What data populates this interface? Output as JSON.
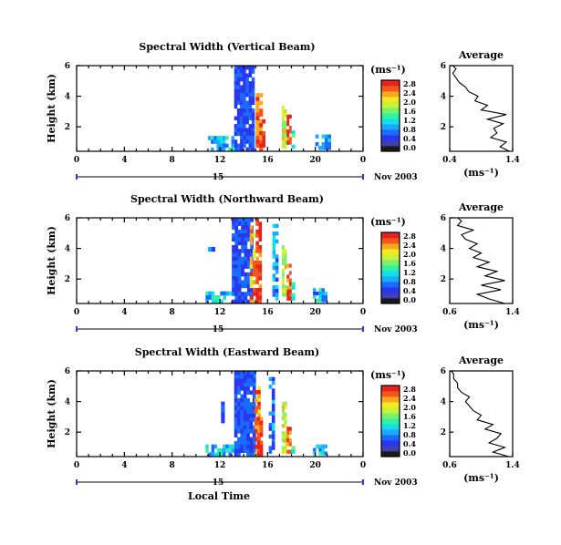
{
  "colors": {
    "colormap": [
      "#1a1a1a",
      "#3f3fb6",
      "#2a36f0",
      "#1a6bff",
      "#1aa9ff",
      "#15dfe6",
      "#32f2a6",
      "#7cf26a",
      "#c6f23a",
      "#f2e91f",
      "#f7a81c",
      "#f5561c",
      "#e8231c"
    ],
    "axis": "#000000",
    "bottom_axis": "#2a36f0"
  },
  "xlabel": "Local Time",
  "chart_data": [
    {
      "type": "heatmap",
      "title": "Spectral Width (Vertical Beam)",
      "ylabel": "Height (km)",
      "xlim": [
        0,
        24
      ],
      "x_ticks": [
        "0",
        "4",
        "8",
        "12",
        "16",
        "20",
        "0"
      ],
      "ylim": [
        0.4,
        6
      ],
      "y_ticks": [
        "2",
        "4",
        "6"
      ],
      "date_axis": {
        "day_label": "15",
        "month_label": "Nov 2003"
      },
      "colorbar": {
        "unit": "(ms⁻¹)",
        "ticks": [
          "0.0",
          "0.4",
          "0.8",
          "1.2",
          "1.6",
          "2.0",
          "2.4",
          "2.8"
        ]
      },
      "blocks": [
        {
          "x0": 13.2,
          "x1": 14.9,
          "y0": 0.4,
          "y1": 6.0,
          "level": 0.4
        },
        {
          "x0": 11.0,
          "x1": 13.2,
          "y0": 0.4,
          "y1": 1.4,
          "level": 0.9
        },
        {
          "x0": 15.0,
          "x1": 15.6,
          "y0": 0.4,
          "y1": 4.2,
          "level": 2.6
        },
        {
          "x0": 15.3,
          "x1": 15.8,
          "y0": 0.4,
          "y1": 2.5,
          "level": 2.9
        },
        {
          "x0": 17.2,
          "x1": 17.6,
          "y0": 0.6,
          "y1": 3.4,
          "level": 1.9
        },
        {
          "x0": 17.6,
          "x1": 18.0,
          "y0": 0.6,
          "y1": 2.8,
          "level": 2.8
        },
        {
          "x0": 18.0,
          "x1": 18.3,
          "y0": 0.6,
          "y1": 2.0,
          "level": 1.2
        },
        {
          "x0": 20.0,
          "x1": 21.3,
          "y0": 0.5,
          "y1": 1.5,
          "level": 0.8
        }
      ],
      "profile": {
        "title": "Average",
        "unit": "(ms⁻¹)",
        "xlim": [
          0.4,
          1.4
        ],
        "x_ticks": [
          "0.4",
          "1.4"
        ],
        "ylim": [
          0.4,
          6
        ],
        "y_ticks": [
          "2",
          "4",
          "6"
        ],
        "height": [
          0.4,
          0.7,
          1.0,
          1.3,
          1.6,
          1.9,
          2.2,
          2.5,
          2.8,
          3.1,
          3.4,
          3.7,
          4.0,
          4.3,
          4.6,
          4.9,
          5.2,
          5.5,
          5.8,
          6.0
        ],
        "width": [
          1.35,
          1.2,
          1.3,
          1.05,
          1.15,
          1.1,
          1.25,
          1.0,
          1.3,
          0.9,
          1.0,
          0.8,
          0.85,
          0.7,
          0.65,
          0.55,
          0.5,
          0.45,
          0.5,
          0.45
        ]
      }
    },
    {
      "type": "heatmap",
      "title": "Spectral Width (Northward Beam)",
      "ylabel": "Height (km)",
      "xlim": [
        0,
        24
      ],
      "x_ticks": [
        "0",
        "4",
        "8",
        "12",
        "16",
        "20",
        "0"
      ],
      "ylim": [
        0.4,
        6
      ],
      "y_ticks": [
        "2",
        "4",
        "6"
      ],
      "date_axis": {
        "day_label": "15",
        "month_label": "Nov 2003"
      },
      "colorbar": {
        "unit": "(ms⁻¹)",
        "ticks": [
          "0.0",
          "0.4",
          "0.8",
          "1.2",
          "1.6",
          "2.0",
          "2.4",
          "2.8"
        ]
      },
      "blocks": [
        {
          "x0": 13.0,
          "x1": 14.8,
          "y0": 0.4,
          "y1": 6.0,
          "level": 0.4
        },
        {
          "x0": 10.8,
          "x1": 13.0,
          "y0": 0.4,
          "y1": 1.2,
          "level": 0.9
        },
        {
          "x0": 11.0,
          "x1": 11.6,
          "y0": 3.8,
          "y1": 4.4,
          "level": 0.7
        },
        {
          "x0": 14.5,
          "x1": 15.0,
          "y0": 0.4,
          "y1": 5.5,
          "level": 2.4
        },
        {
          "x0": 15.0,
          "x1": 15.5,
          "y0": 0.4,
          "y1": 6.0,
          "level": 2.9
        },
        {
          "x0": 16.4,
          "x1": 16.9,
          "y0": 0.6,
          "y1": 5.6,
          "level": 0.7
        },
        {
          "x0": 17.2,
          "x1": 17.6,
          "y0": 0.6,
          "y1": 4.2,
          "level": 1.9
        },
        {
          "x0": 17.6,
          "x1": 18.0,
          "y0": 0.6,
          "y1": 3.0,
          "level": 2.8
        },
        {
          "x0": 18.0,
          "x1": 18.3,
          "y0": 0.6,
          "y1": 1.8,
          "level": 1.2
        },
        {
          "x0": 19.8,
          "x1": 21.0,
          "y0": 0.5,
          "y1": 1.4,
          "level": 0.8
        }
      ],
      "profile": {
        "title": "Average",
        "unit": "(ms⁻¹)",
        "xlim": [
          0.6,
          1.4
        ],
        "x_ticks": [
          "0.6",
          "1.4"
        ],
        "ylim": [
          0.4,
          6
        ],
        "y_ticks": [
          "2",
          "4",
          "6"
        ],
        "height": [
          0.4,
          0.7,
          1.0,
          1.3,
          1.6,
          1.9,
          2.2,
          2.5,
          2.8,
          3.1,
          3.4,
          3.7,
          4.0,
          4.3,
          4.6,
          4.9,
          5.2,
          5.5,
          5.8,
          6.0
        ],
        "width": [
          1.3,
          1.1,
          0.95,
          1.25,
          1.0,
          1.3,
          1.05,
          1.2,
          0.95,
          1.1,
          0.9,
          1.0,
          0.85,
          0.95,
          0.8,
          0.75,
          0.9,
          0.7,
          0.75,
          0.7
        ]
      }
    },
    {
      "type": "heatmap",
      "title": "Spectral Width (Eastward Beam)",
      "ylabel": "Height (km)",
      "xlim": [
        0,
        24
      ],
      "x_ticks": [
        "0",
        "4",
        "8",
        "12",
        "16",
        "20",
        "0"
      ],
      "ylim": [
        0.4,
        6
      ],
      "y_ticks": [
        "2",
        "4",
        "6"
      ],
      "date_axis": {
        "day_label": "15",
        "month_label": "Nov 2003"
      },
      "colorbar": {
        "unit": "(ms⁻¹)",
        "ticks": [
          "0.0",
          "0.4",
          "0.8",
          "1.2",
          "1.6",
          "2.0",
          "2.4",
          "2.8"
        ]
      },
      "blocks": [
        {
          "x0": 13.2,
          "x1": 15.0,
          "y0": 0.4,
          "y1": 6.0,
          "level": 0.4
        },
        {
          "x0": 10.8,
          "x1": 13.2,
          "y0": 0.4,
          "y1": 1.2,
          "level": 0.9
        },
        {
          "x0": 12.1,
          "x1": 12.4,
          "y0": 2.6,
          "y1": 4.0,
          "level": 0.4
        },
        {
          "x0": 14.9,
          "x1": 15.4,
          "y0": 0.4,
          "y1": 5.0,
          "level": 2.5
        },
        {
          "x0": 15.1,
          "x1": 15.6,
          "y0": 0.4,
          "y1": 3.0,
          "level": 2.9
        },
        {
          "x0": 16.1,
          "x1": 16.6,
          "y0": 0.6,
          "y1": 5.6,
          "level": 0.6
        },
        {
          "x0": 17.2,
          "x1": 17.6,
          "y0": 0.6,
          "y1": 4.0,
          "level": 1.9
        },
        {
          "x0": 17.6,
          "x1": 18.0,
          "y0": 0.6,
          "y1": 2.6,
          "level": 2.8
        },
        {
          "x0": 18.0,
          "x1": 18.3,
          "y0": 0.6,
          "y1": 1.6,
          "level": 1.2
        },
        {
          "x0": 19.8,
          "x1": 21.0,
          "y0": 0.5,
          "y1": 1.2,
          "level": 0.8
        }
      ],
      "profile": {
        "title": "Average",
        "unit": "(ms⁻¹)",
        "xlim": [
          0.6,
          1.4
        ],
        "x_ticks": [
          "0.6",
          "1.4"
        ],
        "ylim": [
          0.4,
          6
        ],
        "y_ticks": [
          "2",
          "4",
          "6"
        ],
        "height": [
          0.4,
          0.7,
          1.0,
          1.3,
          1.6,
          1.9,
          2.2,
          2.5,
          2.8,
          3.1,
          3.4,
          3.7,
          4.0,
          4.3,
          4.6,
          4.9,
          5.2,
          5.5,
          5.8,
          6.0
        ],
        "width": [
          1.35,
          1.15,
          1.3,
          1.1,
          1.2,
          1.25,
          1.05,
          1.15,
          0.95,
          1.0,
          0.9,
          0.85,
          0.8,
          0.85,
          0.75,
          0.7,
          0.7,
          0.65,
          0.65,
          0.62
        ]
      }
    }
  ]
}
